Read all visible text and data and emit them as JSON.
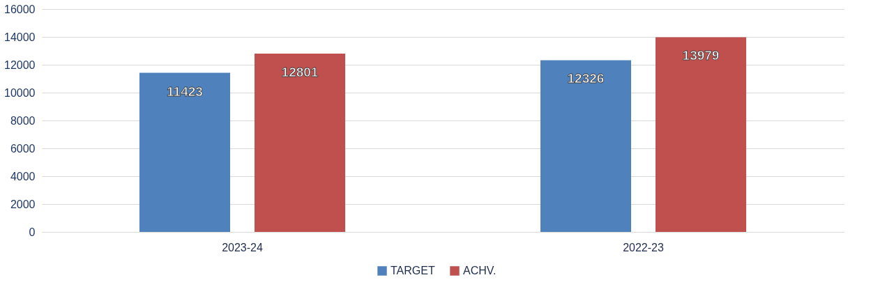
{
  "chart_data": {
    "type": "bar",
    "categories": [
      "2023-24",
      "2022-23"
    ],
    "series": [
      {
        "name": "TARGET",
        "color": "#4f81bd",
        "values": [
          11423,
          12326
        ]
      },
      {
        "name": "ACHV.",
        "color": "#c0504d",
        "values": [
          12801,
          13979
        ]
      }
    ],
    "ylim": [
      0,
      16000
    ],
    "yticks": [
      0,
      2000,
      4000,
      6000,
      8000,
      10000,
      12000,
      14000,
      16000
    ],
    "grid": "y",
    "legend": "bottom",
    "data_labels": true
  }
}
